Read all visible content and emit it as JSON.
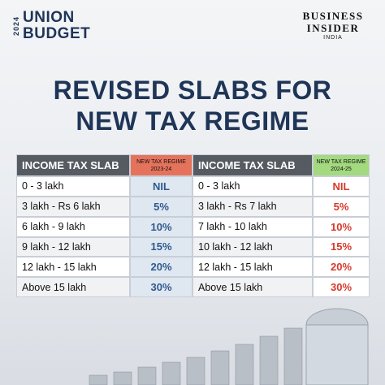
{
  "header": {
    "logo": {
      "year": "2024",
      "line1": "UNION",
      "line2": "BUDGET"
    },
    "brand": {
      "line1": "BUSINESS",
      "line2": "INSIDER",
      "line3": "INDIA"
    }
  },
  "title": [
    "REVISED SLABS FOR",
    "NEW TAX REGIME"
  ],
  "tables": [
    {
      "slab_header": "INCOME TAX SLAB",
      "regime_header": "NEW TAX REGIME",
      "regime_year": "2023-24",
      "rows": [
        [
          "0 - 3 lakh",
          "NIL"
        ],
        [
          "3 lakh - Rs 6 lakh",
          "5%"
        ],
        [
          "6 lakh - 9 lakh",
          "10%"
        ],
        [
          "9 lakh - 12 lakh",
          "15%"
        ],
        [
          "12 lakh - 15 lakh",
          "20%"
        ],
        [
          "Above 15 lakh",
          "30%"
        ]
      ]
    },
    {
      "slab_header": "INCOME TAX SLAB",
      "regime_header": "NEW TAX REGIME",
      "regime_year": "2024-25",
      "rows": [
        [
          "0 - 3 lakh",
          "NIL"
        ],
        [
          "3 lakh - Rs 7 lakh",
          "5%"
        ],
        [
          "7 lakh - 10 lakh",
          "10%"
        ],
        [
          "10 lakh - 12 lakh",
          "15%"
        ],
        [
          "12 lakh - 15 lakh",
          "20%"
        ],
        [
          "Above 15 lakh",
          "30%"
        ]
      ]
    }
  ]
}
